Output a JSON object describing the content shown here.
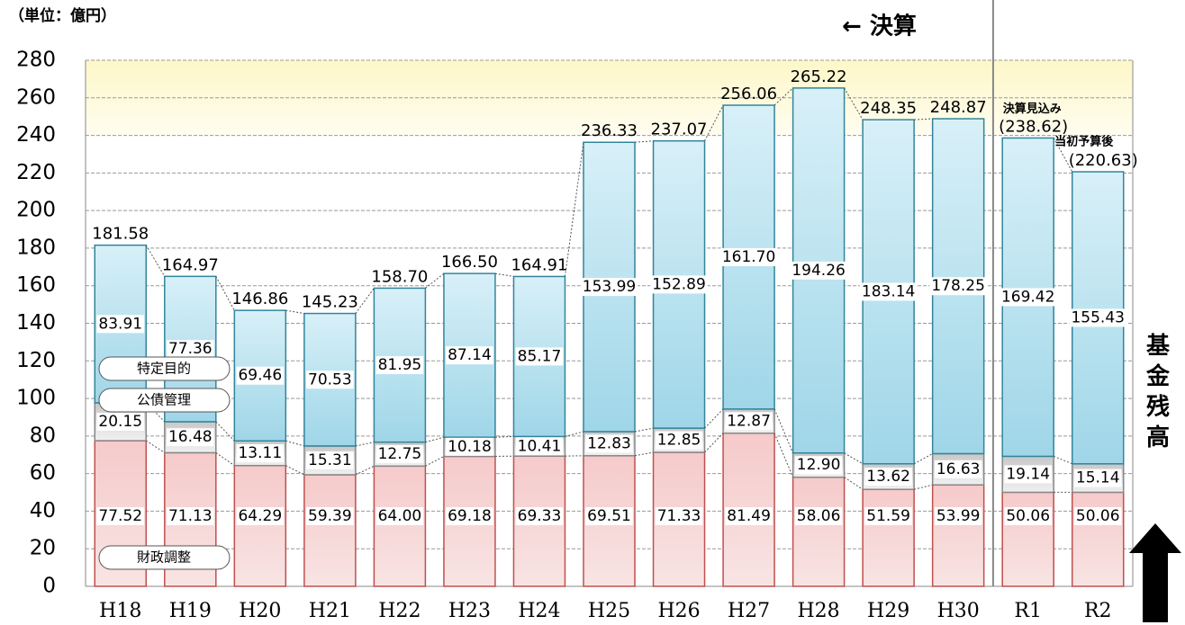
{
  "chart_data": {
    "type": "stacked_bar",
    "unit_label": "（単位：億円）",
    "categories": [
      "H18",
      "H19",
      "H20",
      "H21",
      "H22",
      "H23",
      "H24",
      "H25",
      "H26",
      "H27",
      "H28",
      "H29",
      "H30",
      "R1",
      "R2"
    ],
    "series": [
      {
        "name": "財政調整",
        "color": "#e8a0a0",
        "values": [
          77.52,
          71.13,
          64.29,
          59.39,
          64.0,
          69.18,
          69.33,
          69.51,
          71.33,
          81.49,
          58.06,
          51.59,
          53.99,
          50.06,
          50.06
        ],
        "value_labels": [
          "77.52",
          "71.13",
          "64.29",
          "59.39",
          "64.00",
          "69.18",
          "69.33",
          "69.51",
          "71.33",
          "81.49",
          "58.06",
          "51.59",
          "53.99",
          "50.06",
          "50.06"
        ]
      },
      {
        "name": "公債管理",
        "color": "#d0d0d0",
        "values": [
          20.15,
          16.48,
          13.11,
          15.31,
          12.75,
          10.18,
          10.41,
          12.83,
          12.85,
          12.87,
          12.9,
          13.62,
          16.63,
          19.14,
          15.14
        ],
        "value_labels": [
          "20.15",
          "16.48",
          "13.11",
          "15.31",
          "12.75",
          "10.18",
          "10.41",
          "12.83",
          "12.85",
          "12.87",
          "12.90",
          "13.62",
          "16.63",
          "19.14",
          "15.14"
        ]
      },
      {
        "name": "特定目的",
        "color": "#a8dcec",
        "values": [
          83.91,
          77.36,
          69.46,
          70.53,
          81.95,
          87.14,
          85.17,
          153.99,
          152.89,
          161.7,
          194.26,
          183.14,
          178.25,
          169.42,
          155.43
        ],
        "value_labels": [
          "83.91",
          "77.36",
          "69.46",
          "70.53",
          "81.95",
          "87.14",
          "85.17",
          "153.99",
          "152.89",
          "161.70",
          "194.26",
          "183.14",
          "178.25",
          "169.42",
          "155.43"
        ]
      }
    ],
    "totals": {
      "values": [
        181.58,
        164.97,
        146.86,
        145.23,
        158.7,
        166.5,
        164.91,
        236.33,
        237.07,
        256.06,
        265.22,
        248.35,
        248.87,
        238.62,
        220.63
      ],
      "value_labels": [
        "181.58",
        "164.97",
        "146.86",
        "145.23",
        "158.70",
        "166.50",
        "164.91",
        "236.33",
        "237.07",
        "256.06",
        "265.22",
        "248.35",
        "248.87",
        "(238.62)",
        "(220.63)"
      ]
    },
    "annotations": {
      "settled": "← 決算",
      "r1_note": "決算見込み",
      "r2_note": "当初予算後",
      "side_label": "基金残高"
    },
    "ylim": [
      0,
      280
    ],
    "yticks": [
      0,
      20,
      40,
      60,
      80,
      100,
      120,
      140,
      160,
      180,
      200,
      220,
      240,
      260,
      280
    ],
    "grid": true
  }
}
